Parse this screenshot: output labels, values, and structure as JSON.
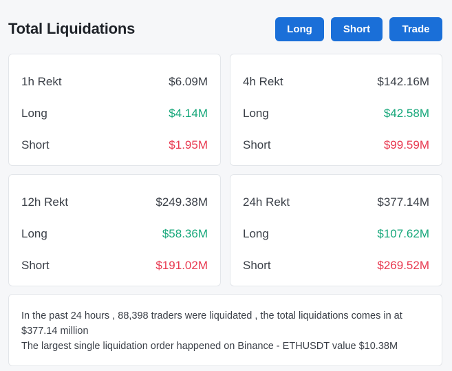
{
  "header": {
    "title": "Total Liquidations",
    "buttons": {
      "long": "Long",
      "short": "Short",
      "trade": "Trade"
    }
  },
  "cards": [
    {
      "rekt_label": "1h Rekt",
      "rekt_value": "$6.09M",
      "long_label": "Long",
      "long_value": "$4.14M",
      "short_label": "Short",
      "short_value": "$1.95M"
    },
    {
      "rekt_label": "4h Rekt",
      "rekt_value": "$142.16M",
      "long_label": "Long",
      "long_value": "$42.58M",
      "short_label": "Short",
      "short_value": "$99.59M"
    },
    {
      "rekt_label": "12h Rekt",
      "rekt_value": "$249.38M",
      "long_label": "Long",
      "long_value": "$58.36M",
      "short_label": "Short",
      "short_value": "$191.02M"
    },
    {
      "rekt_label": "24h Rekt",
      "rekt_value": "$377.14M",
      "long_label": "Long",
      "long_value": "$107.62M",
      "short_label": "Short",
      "short_value": "$269.52M"
    }
  ],
  "info": {
    "line1": "In the past 24 hours , 88,398 traders were liquidated , the total liquidations comes in at $377.14 million",
    "line2": "The largest single liquidation order happened on Binance - ETHUSDT value $10.38M"
  },
  "colors": {
    "accent": "#1a6fd8",
    "long": "#16a77a",
    "short": "#e8384f"
  }
}
